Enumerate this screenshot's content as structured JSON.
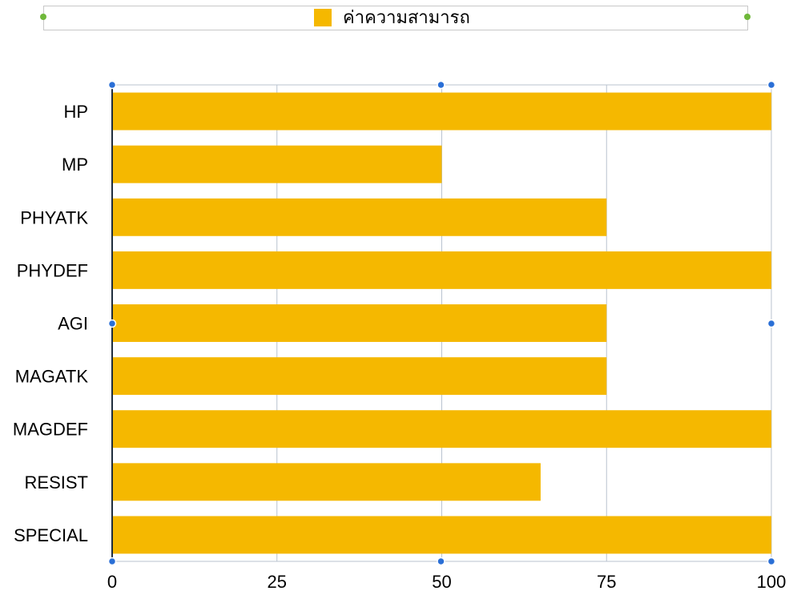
{
  "legend": {
    "label": "ค่าความสามารถ",
    "color": "#f5b800"
  },
  "colors": {
    "bar": "#f5b800",
    "grid": "#b9c3cf",
    "axis": "#1f2d3d",
    "selection": "#2a6fd6",
    "legend_handle": "#6fb83a"
  },
  "chart_data": {
    "type": "bar",
    "orientation": "horizontal",
    "categories": [
      "HP",
      "MP",
      "PHYATK",
      "PHYDEF",
      "AGI",
      "MAGATK",
      "MAGDEF",
      "RESIST",
      "SPECIAL"
    ],
    "series": [
      {
        "name": "ค่าความสามารถ",
        "values": [
          100,
          50,
          75,
          100,
          75,
          75,
          100,
          65,
          100
        ]
      }
    ],
    "xlim": [
      0,
      100
    ],
    "xticks": [
      "0",
      "25",
      "50",
      "75",
      "100"
    ],
    "grid": true,
    "legend_position": "top-center",
    "title": "",
    "xlabel": "",
    "ylabel": ""
  }
}
